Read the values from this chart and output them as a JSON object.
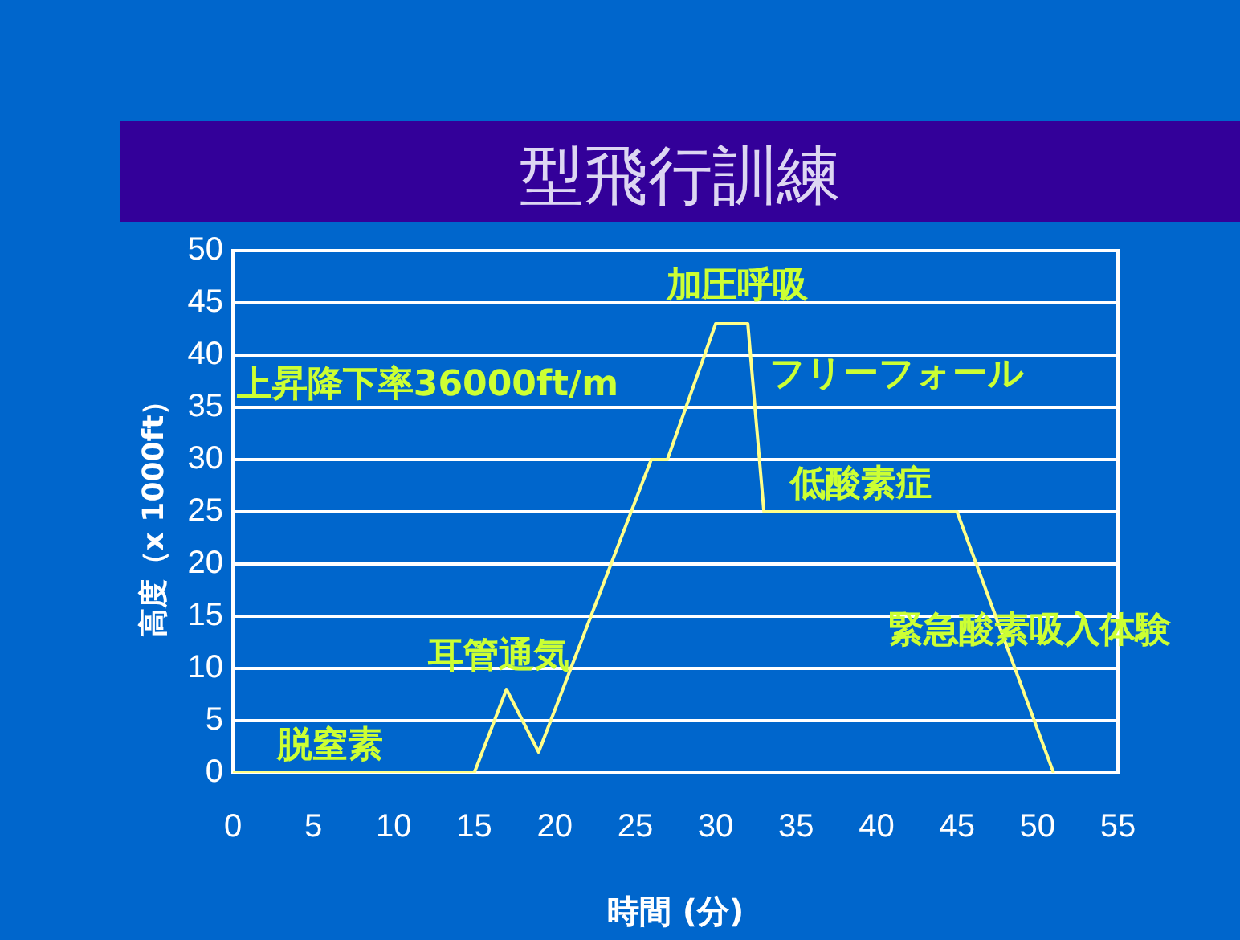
{
  "chart_data": {
    "type": "line",
    "title": "型飛行訓練",
    "xlabel": "時間 (分)",
    "ylabel": "高度（x 1000ft）",
    "x": [
      0,
      15,
      17,
      19,
      26,
      27,
      30,
      32,
      33,
      45,
      51
    ],
    "values": [
      0,
      0,
      8,
      2,
      30,
      30,
      43,
      43,
      25,
      25,
      0
    ],
    "color": "#ffff88",
    "marker": "none",
    "xlim": [
      0,
      55
    ],
    "xticks": [
      0,
      5,
      10,
      15,
      20,
      25,
      30,
      35,
      40,
      45,
      50,
      55
    ],
    "ylim": [
      0,
      50
    ],
    "yticks": [
      0,
      5,
      10,
      15,
      20,
      25,
      30,
      35,
      40,
      45,
      50
    ],
    "grid": "y",
    "annotations": [
      "脱窒素",
      "耳管通気",
      "上昇降下率36000ft/m",
      "加圧呼吸",
      "フリーフォール",
      "低酸素症",
      "緊急酸素吸入体験"
    ]
  }
}
